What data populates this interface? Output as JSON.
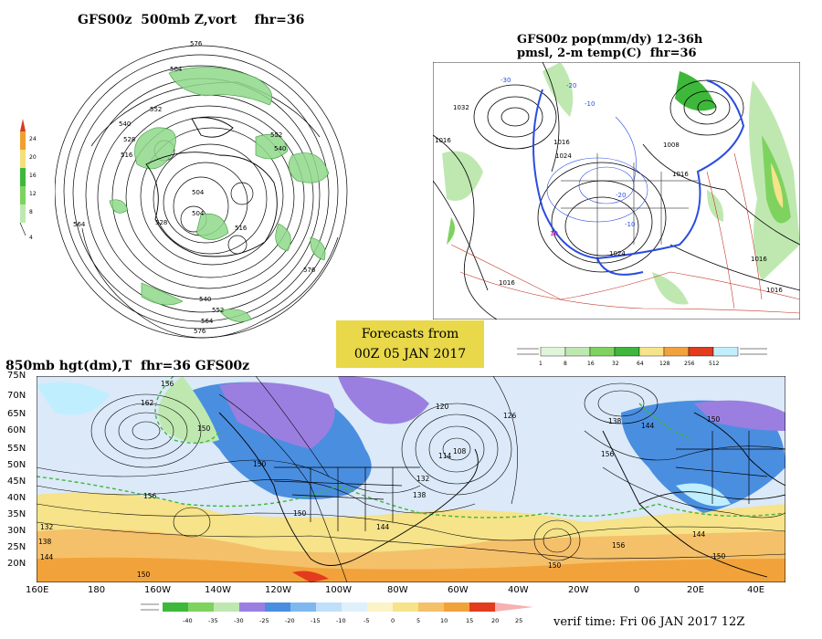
{
  "panels": {
    "top_left": {
      "title": "GFS00z  500mb Z,vort    fhr=36",
      "legend_values": [
        "24",
        "20",
        "16",
        "12",
        "8",
        "4"
      ],
      "labels": [
        "576",
        "564",
        "552",
        "540",
        "528",
        "516",
        "504",
        "576",
        "564",
        "552",
        "540",
        "504",
        "516",
        "528",
        "540",
        "552",
        "564",
        "576"
      ]
    },
    "top_right": {
      "title_line1": "GFS00z pop(mm/dy) 12-36h",
      "title_line2": "pmsl, 2-m temp(C)  fhr=36",
      "legend_values": [
        "1",
        "8",
        "16",
        "32",
        "64",
        "128",
        "256",
        "512"
      ],
      "labels": [
        "1032",
        "1016",
        "1016",
        "1024",
        "1008",
        "1016",
        "1024",
        "1016",
        "1016",
        "1016",
        "-30",
        "-20",
        "-10",
        "10",
        "-20",
        "-10"
      ]
    },
    "banner": {
      "line1": "Forecasts from",
      "line2": "00Z 05 JAN 2017"
    },
    "bottom": {
      "title": "850mb hgt(dm),T  fhr=36 GFS00z",
      "lat_labels": [
        "75N",
        "70N",
        "65N",
        "60N",
        "55N",
        "50N",
        "45N",
        "40N",
        "35N",
        "30N",
        "25N",
        "20N"
      ],
      "lon_labels": [
        "160E",
        "180",
        "160W",
        "140W",
        "120W",
        "100W",
        "80W",
        "60W",
        "40W",
        "20W",
        "0",
        "20E",
        "40E"
      ],
      "contour_labels": [
        "156",
        "162",
        "150",
        "150",
        "156",
        "132",
        "138",
        "144",
        "150",
        "120",
        "126",
        "108",
        "114",
        "132",
        "138",
        "144",
        "156",
        "150",
        "144",
        "138",
        "150",
        "156",
        "144",
        "150",
        "150"
      ],
      "temp_legend_values": [
        "-40",
        "-35",
        "-30",
        "-25",
        "-20",
        "-15",
        "-10",
        "-5",
        "0",
        "5",
        "10",
        "15",
        "20",
        "25"
      ],
      "verif_time": "verif time: Fri 06 JAN 2017 12Z"
    }
  },
  "colors": {
    "frame_bg": "#dbe9f8",
    "green_light": "#bfe8b0",
    "green_mid": "#7ed35f",
    "green_dark": "#3eb83a",
    "yellow": "#f6e38a",
    "orange": "#f2a23a",
    "red": "#e23b1e",
    "purple": "#9b7fe0",
    "blue": "#4a8ee0",
    "cyan": "#bfeeff",
    "mslp_blue": "#2a4de0",
    "temp_red": "#c0392b"
  }
}
